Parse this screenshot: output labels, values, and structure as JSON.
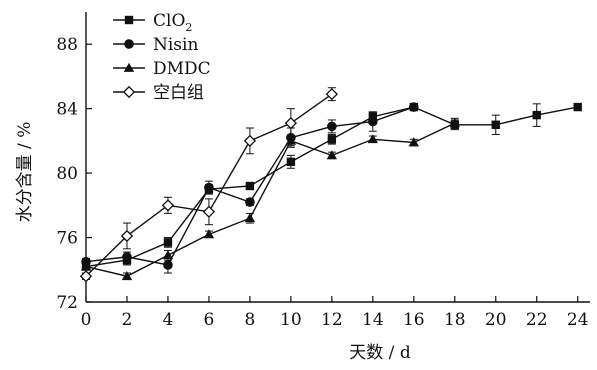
{
  "chart_data": {
    "type": "line",
    "xlabel": "天数 / d",
    "ylabel": "水分含量 / %",
    "xlim": [
      0,
      24.6
    ],
    "ylim": [
      72,
      90
    ],
    "xticks": [
      0,
      2,
      4,
      6,
      8,
      10,
      12,
      14,
      16,
      18,
      20,
      22,
      24
    ],
    "yticks": [
      72,
      76,
      80,
      84,
      88
    ],
    "legend": {
      "placement": "top-left"
    },
    "series": [
      {
        "name": "ClO2",
        "name_main": "ClO",
        "name_sub": "2",
        "marker": "square",
        "x": [
          0,
          2,
          4,
          6,
          8,
          10,
          12,
          14,
          16,
          18,
          20,
          22,
          24
        ],
        "values": [
          74.2,
          74.6,
          75.7,
          79.0,
          79.2,
          80.7,
          82.1,
          83.5,
          84.1,
          83.0,
          83.0,
          83.6,
          84.1
        ],
        "errors": [
          0.2,
          0.3,
          0.3,
          0.3,
          0.2,
          0.4,
          0.3,
          0.3,
          0,
          0.3,
          0.6,
          0.7,
          0
        ]
      },
      {
        "name": "Nisin",
        "marker": "circle",
        "x": [
          0,
          2,
          4,
          6,
          8,
          10,
          12,
          14,
          16
        ],
        "values": [
          74.5,
          74.8,
          74.3,
          79.1,
          78.2,
          82.2,
          82.9,
          83.2,
          84.1
        ],
        "errors": [
          0.2,
          0.3,
          0.5,
          0.4,
          0.2,
          0.6,
          0.4,
          0.6,
          0
        ]
      },
      {
        "name": "DMDC",
        "marker": "triangle",
        "x": [
          0,
          2,
          4,
          6,
          8,
          10,
          12,
          14,
          16,
          18
        ],
        "values": [
          74.2,
          73.6,
          74.9,
          76.2,
          77.2,
          82.0,
          81.1,
          82.1,
          81.9,
          83.1
        ],
        "errors": [
          0.2,
          0.2,
          0.3,
          0.2,
          0.3,
          0.3,
          0.2,
          0.2,
          0.2,
          0.3
        ]
      },
      {
        "name": "空白组",
        "marker": "open-diamond",
        "x": [
          0,
          2,
          4,
          6,
          8,
          10,
          12
        ],
        "values": [
          73.6,
          76.1,
          78.0,
          77.6,
          82.0,
          83.1,
          84.9
        ],
        "errors": [
          0.2,
          0.8,
          0.5,
          0.8,
          0.8,
          0.9,
          0.4
        ]
      }
    ]
  }
}
